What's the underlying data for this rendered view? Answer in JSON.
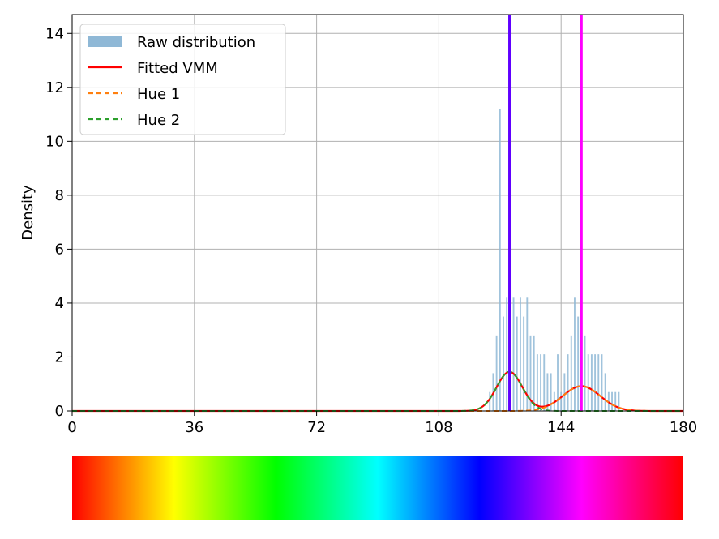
{
  "chart_data": {
    "type": "bar",
    "title": "",
    "xlabel": "",
    "ylabel": "Density",
    "xlim": [
      0,
      180
    ],
    "ylim": [
      0,
      14.7
    ],
    "x_ticks": [
      0,
      36,
      72,
      108,
      144,
      180
    ],
    "y_ticks": [
      0,
      2,
      4,
      6,
      8,
      10,
      12,
      14
    ],
    "grid": true,
    "legend_position": "top-left",
    "series": [
      {
        "name": "Raw distribution",
        "kind": "histogram",
        "color": "#8fb8d6",
        "bins": [
          {
            "x": 123,
            "y": 0.7
          },
          {
            "x": 124,
            "y": 1.4
          },
          {
            "x": 125,
            "y": 2.8
          },
          {
            "x": 126,
            "y": 11.2
          },
          {
            "x": 127,
            "y": 3.5
          },
          {
            "x": 128,
            "y": 4.2
          },
          {
            "x": 129,
            "y": 9.1
          },
          {
            "x": 130,
            "y": 4.2
          },
          {
            "x": 131,
            "y": 3.5
          },
          {
            "x": 132,
            "y": 4.2
          },
          {
            "x": 133,
            "y": 3.5
          },
          {
            "x": 134,
            "y": 4.2
          },
          {
            "x": 135,
            "y": 2.8
          },
          {
            "x": 136,
            "y": 2.8
          },
          {
            "x": 137,
            "y": 2.1
          },
          {
            "x": 138,
            "y": 2.1
          },
          {
            "x": 139,
            "y": 2.1
          },
          {
            "x": 140,
            "y": 1.4
          },
          {
            "x": 141,
            "y": 1.4
          },
          {
            "x": 142,
            "y": 0.7
          },
          {
            "x": 143,
            "y": 2.1
          },
          {
            "x": 144,
            "y": 0.7
          },
          {
            "x": 145,
            "y": 1.4
          },
          {
            "x": 146,
            "y": 2.1
          },
          {
            "x": 147,
            "y": 2.8
          },
          {
            "x": 148,
            "y": 4.2
          },
          {
            "x": 149,
            "y": 3.5
          },
          {
            "x": 150,
            "y": 4.2
          },
          {
            "x": 151,
            "y": 2.8
          },
          {
            "x": 152,
            "y": 2.1
          },
          {
            "x": 153,
            "y": 2.1
          },
          {
            "x": 154,
            "y": 2.1
          },
          {
            "x": 155,
            "y": 2.1
          },
          {
            "x": 156,
            "y": 2.1
          },
          {
            "x": 157,
            "y": 1.4
          },
          {
            "x": 158,
            "y": 0.7
          },
          {
            "x": 159,
            "y": 0.7
          },
          {
            "x": 160,
            "y": 0.7
          },
          {
            "x": 161,
            "y": 0.7
          }
        ]
      },
      {
        "name": "Fitted VMM",
        "kind": "line",
        "color": "#ff0000",
        "components": [
          {
            "mu": 128.8,
            "sigma": 3.8,
            "peak": 1.45
          },
          {
            "mu": 150.0,
            "sigma": 5.5,
            "peak": 0.92
          }
        ]
      },
      {
        "name": "Hue 1",
        "kind": "dashed",
        "color": "#ff7f0e",
        "component": {
          "mu": 150.0,
          "sigma": 5.5,
          "peak": 0.92
        }
      },
      {
        "name": "Hue 2",
        "kind": "dashed",
        "color": "#2ca02c",
        "component": {
          "mu": 128.8,
          "sigma": 3.8,
          "peak": 1.45
        }
      }
    ],
    "vertical_lines": [
      {
        "x": 128.8,
        "color": "#6000ff"
      },
      {
        "x": 150.0,
        "color": "#ff00ff"
      }
    ],
    "colorbar": {
      "range": [
        0,
        180
      ],
      "stops": [
        "#ff0000",
        "#ffff00",
        "#00ff00",
        "#00ffff",
        "#0000ff",
        "#ff00ff",
        "#ff0000"
      ]
    }
  }
}
